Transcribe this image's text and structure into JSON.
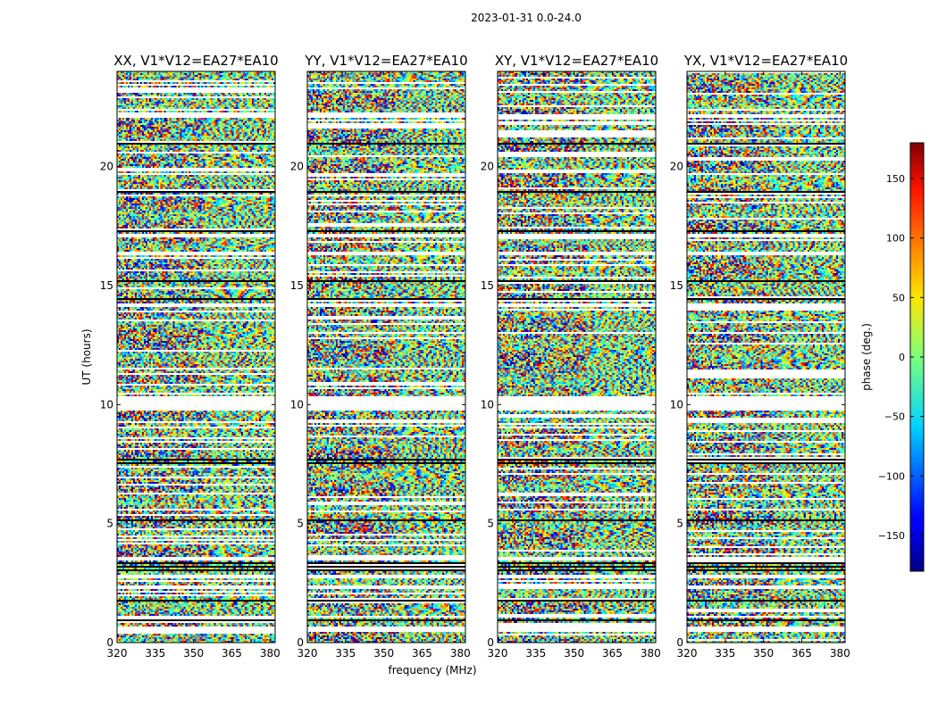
{
  "figure_title": "2023-01-31 0.0-24.0",
  "chart_data": {
    "type": "heatmap",
    "suptitle": "2023-01-31 0.0-24.0",
    "xlabel": "frequency (MHz)",
    "ylabel": "UT (hours)",
    "xlim": [
      320,
      382
    ],
    "ylim": [
      0,
      24
    ],
    "xticks": [
      "320",
      "335",
      "350",
      "365",
      "380"
    ],
    "xtick_values": [
      320,
      335,
      350,
      365,
      380
    ],
    "yticks": [
      "0",
      "5",
      "10",
      "15",
      "20"
    ],
    "ytick_values": [
      0,
      5,
      10,
      15,
      20
    ],
    "panels": [
      {
        "title": "XX, V1*V12=EA27*EA10",
        "pol": "XX"
      },
      {
        "title": "YY, V1*V12=EA27*EA10",
        "pol": "YY"
      },
      {
        "title": "XY, V1*V12=EA27*EA10",
        "pol": "XY"
      },
      {
        "title": "YX, V1*V12=EA27*EA10",
        "pol": "YX"
      }
    ],
    "colorbar": {
      "label": "phase (deg.)",
      "range": [
        -180,
        180
      ],
      "colormap": "jet",
      "ticks": [
        "150",
        "100",
        "50",
        "0",
        "−50",
        "−100",
        "−150"
      ],
      "tick_values": [
        150,
        100,
        50,
        0,
        -50,
        -100,
        -150
      ]
    },
    "flagged_ut_gaps": [
      [
        0.5,
        0.62
      ],
      [
        1.05,
        1.12
      ],
      [
        2.32,
        2.4
      ],
      [
        2.72,
        2.8
      ],
      [
        3.45,
        3.55
      ],
      [
        9.75,
        10.3
      ],
      [
        14.15,
        14.25
      ],
      [
        16.3,
        16.38
      ],
      [
        17.05,
        17.12
      ],
      [
        22.1,
        22.2
      ]
    ],
    "dark_ut_lines": [
      0.98,
      1.78,
      3.05,
      3.2,
      3.35,
      5.15,
      7.6,
      7.7,
      14.45,
      15.2,
      17.3,
      19.0,
      21.0
    ]
  }
}
